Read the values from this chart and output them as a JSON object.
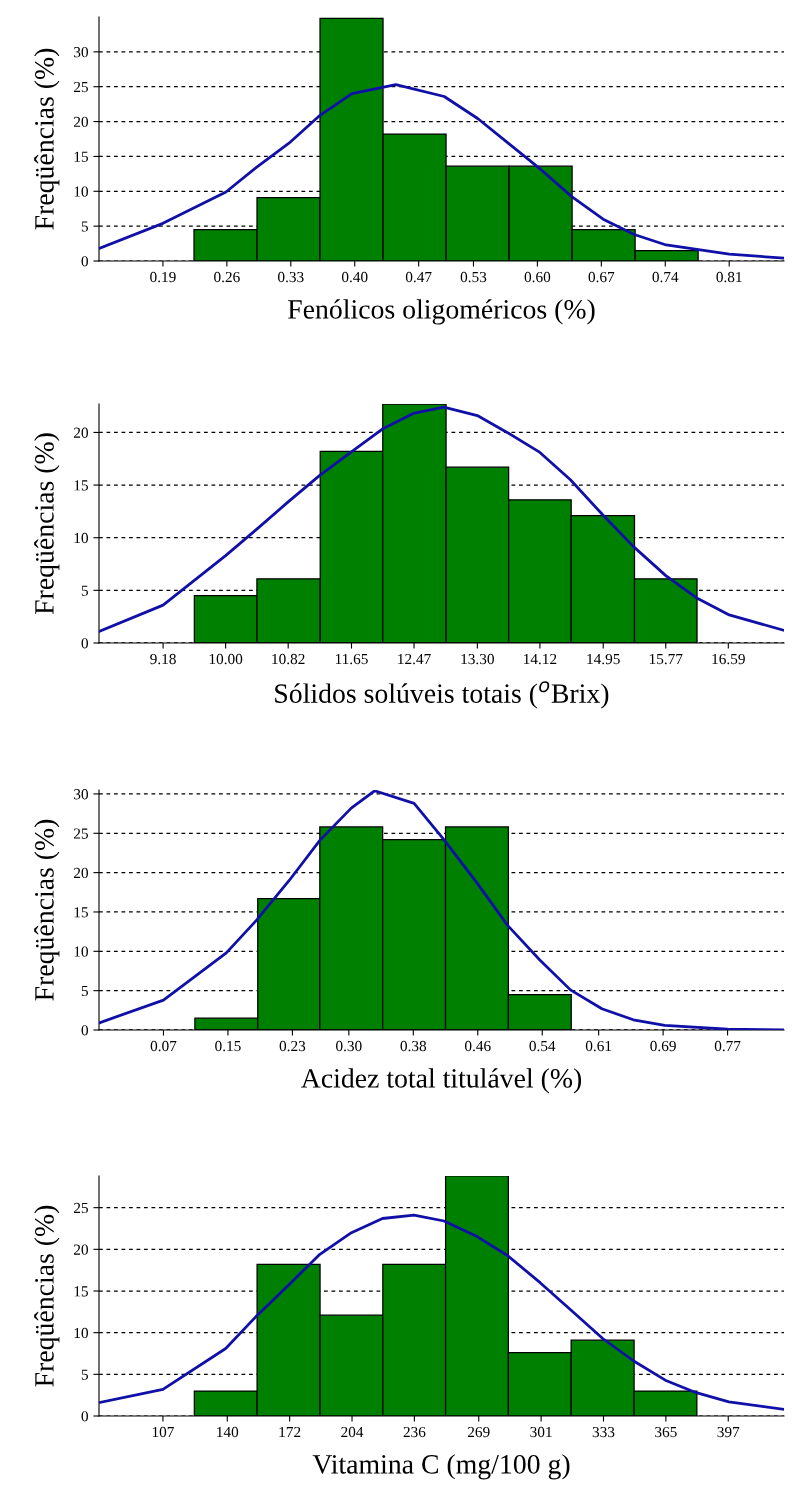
{
  "chart_data": [
    {
      "type": "histogram",
      "xlabel": "Fenólicos oligoméricos (%)",
      "ylabel": "Freqüências (%)",
      "color": "#008000",
      "grid": "y",
      "bins": [
        0.224,
        0.293,
        0.362,
        0.431,
        0.5,
        0.569,
        0.638,
        0.707,
        0.776
      ],
      "values": [
        4.5,
        9.1,
        34.8,
        18.2,
        13.6,
        13.6,
        4.5,
        1.5
      ],
      "xlim": [
        0.12,
        0.87
      ],
      "ylim": [
        0,
        35
      ],
      "yticks": [
        0,
        5,
        10,
        15,
        20,
        25,
        30
      ],
      "xticks": [
        {
          "value": 0.19,
          "label": "0.19"
        },
        {
          "value": 0.26,
          "label": "0.26"
        },
        {
          "value": 0.33,
          "label": "0.33"
        },
        {
          "value": 0.4,
          "label": "0.40"
        },
        {
          "value": 0.47,
          "label": "0.47"
        },
        {
          "value": 0.53,
          "label": "0.53"
        },
        {
          "value": 0.6,
          "label": "0.60"
        },
        {
          "value": 0.67,
          "label": "0.67"
        },
        {
          "value": 0.74,
          "label": "0.74"
        },
        {
          "value": 0.81,
          "label": "0.81"
        }
      ],
      "series": [
        {
          "type": "line",
          "color": "#1010a8",
          "x": [
            0.12,
            0.19,
            0.259,
            0.292,
            0.328,
            0.362,
            0.397,
            0.445,
            0.498,
            0.535,
            0.568,
            0.604,
            0.638,
            0.672,
            0.706,
            0.741,
            0.81,
            0.87
          ],
          "values": [
            1.8,
            5.4,
            9.9,
            13.4,
            16.9,
            20.9,
            24.0,
            25.3,
            23.6,
            20.4,
            16.9,
            13.1,
            9.2,
            6.0,
            3.8,
            2.3,
            1.0,
            0.4
          ]
        }
      ]
    },
    {
      "type": "histogram",
      "xlabel": "Sólidos solúveis totais ($^{o}$Brix)",
      "ylabel": "Freqüências (%)",
      "color": "#008000",
      "grid": "y",
      "bins": [
        9.59,
        10.41,
        11.24,
        12.06,
        12.89,
        13.71,
        14.53,
        15.36,
        16.18
      ],
      "values": [
        4.5,
        6.1,
        18.2,
        22.7,
        16.7,
        13.6,
        12.1,
        6.1
      ],
      "xlim": [
        8.34,
        17.32
      ],
      "ylim": [
        0,
        22.7
      ],
      "yticks": [
        0,
        5,
        10,
        15,
        20
      ],
      "xticks": [
        {
          "value": 9.18,
          "label": "9.18"
        },
        {
          "value": 10.0,
          "label": "10.00"
        },
        {
          "value": 10.82,
          "label": "10.82"
        },
        {
          "value": 11.65,
          "label": "11.65"
        },
        {
          "value": 12.47,
          "label": "12.47"
        },
        {
          "value": 13.3,
          "label": "13.30"
        },
        {
          "value": 14.12,
          "label": "14.12"
        },
        {
          "value": 14.95,
          "label": "14.95"
        },
        {
          "value": 15.77,
          "label": "15.77"
        },
        {
          "value": 16.59,
          "label": "16.59"
        }
      ],
      "series": [
        {
          "type": "line",
          "color": "#1010a8",
          "x": [
            8.34,
            9.18,
            10.0,
            10.39,
            10.82,
            11.23,
            11.64,
            12.05,
            12.46,
            12.86,
            13.3,
            13.69,
            14.12,
            14.52,
            14.94,
            15.34,
            15.77,
            16.17,
            16.59,
            17.32
          ],
          "values": [
            1.1,
            3.6,
            8.3,
            10.7,
            13.4,
            15.9,
            18.1,
            20.3,
            21.8,
            22.4,
            21.6,
            20.0,
            18.1,
            15.5,
            12.2,
            9.2,
            6.4,
            4.3,
            2.7,
            1.2
          ]
        }
      ]
    },
    {
      "type": "histogram",
      "xlabel": "Acidez total titulável (%)",
      "ylabel": "Freqüências (%)",
      "color": "#008000",
      "grid": "y",
      "bins": [
        0.109,
        0.187,
        0.264,
        0.342,
        0.42,
        0.498,
        0.576
      ],
      "values": [
        1.5,
        16.7,
        25.8,
        24.2,
        25.8,
        4.5
      ],
      "xlim": [
        -0.01,
        0.84
      ],
      "ylim": [
        0,
        30.5
      ],
      "yticks": [
        0,
        5,
        10,
        15,
        20,
        25,
        30
      ],
      "xticks": [
        {
          "value": 0.07,
          "label": "0.07"
        },
        {
          "value": 0.15,
          "label": "0.15"
        },
        {
          "value": 0.23,
          "label": "0.23"
        },
        {
          "value": 0.3,
          "label": "0.30"
        },
        {
          "value": 0.38,
          "label": "0.38"
        },
        {
          "value": 0.46,
          "label": "0.46"
        },
        {
          "value": 0.54,
          "label": "0.54"
        },
        {
          "value": 0.61,
          "label": "0.61"
        },
        {
          "value": 0.69,
          "label": "0.69"
        },
        {
          "value": 0.77,
          "label": "0.77"
        }
      ],
      "series": [
        {
          "type": "line",
          "color": "#1010a8",
          "x": [
            -0.01,
            0.07,
            0.148,
            0.185,
            0.226,
            0.264,
            0.303,
            0.332,
            0.381,
            0.418,
            0.459,
            0.497,
            0.537,
            0.575,
            0.614,
            0.653,
            0.692,
            0.77,
            0.84
          ],
          "values": [
            0.9,
            3.8,
            9.8,
            13.9,
            19.0,
            24.1,
            28.2,
            30.4,
            28.8,
            24.2,
            18.7,
            13.3,
            8.9,
            5.1,
            2.7,
            1.3,
            0.6,
            0.1,
            0
          ]
        }
      ]
    },
    {
      "type": "histogram",
      "xlabel": "Vitamina C (mg/100 g)",
      "ylabel": "Freqüências (%)",
      "color": "#008000",
      "grid": "y",
      "bins": [
        123.1,
        155.3,
        187.6,
        219.8,
        252.0,
        284.2,
        316.4,
        348.7,
        380.9
      ],
      "values": [
        3.0,
        18.2,
        12.1,
        18.2,
        28.8,
        7.6,
        9.1,
        3.0
      ],
      "xlim": [
        74.2,
        425.6
      ],
      "ylim": [
        0,
        28.8
      ],
      "yticks": [
        0,
        5,
        10,
        15,
        20,
        25
      ],
      "xticks": [
        107,
        140,
        172,
        204,
        236,
        269,
        301,
        333,
        365,
        397
      ],
      "series": [
        {
          "type": "line",
          "color": "#1010a8",
          "x": [
            74.2,
            107,
            139.2,
            154.6,
            171.4,
            187.5,
            203.7,
            219.6,
            235.8,
            251.2,
            268.4,
            284.1,
            300.5,
            316.4,
            332.6,
            348.5,
            364.7,
            380.6,
            397.3,
            425.6
          ],
          "values": [
            1.6,
            3.2,
            8.1,
            11.9,
            15.7,
            19.4,
            22.0,
            23.7,
            24.1,
            23.4,
            21.5,
            19.2,
            16.0,
            12.7,
            9.3,
            6.6,
            4.3,
            2.8,
            1.7,
            0.8
          ]
        }
      ]
    }
  ]
}
